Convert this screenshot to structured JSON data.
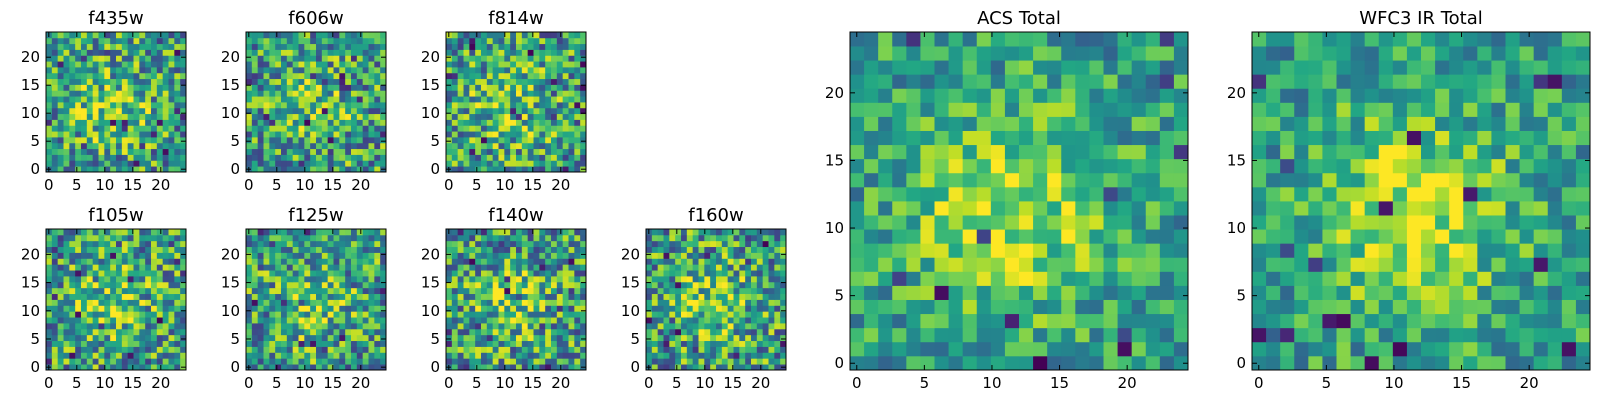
{
  "figure": {
    "colormap": [
      "#440154",
      "#31688e",
      "#35b779",
      "#8fd744",
      "#fde725"
    ],
    "palette_hint": "viridis-like heatmaps, 24x24 pixel grids per panel"
  },
  "chart_data": [
    {
      "type": "heatmap",
      "title": "f435w",
      "grid": [
        24,
        24
      ],
      "xticks": [
        0,
        5,
        10,
        15,
        20
      ],
      "yticks": [
        0,
        5,
        10,
        15,
        20
      ],
      "xlim": [
        -0.5,
        24.5
      ],
      "ylim": [
        -0.5,
        24.5
      ],
      "seed": 11
    },
    {
      "type": "heatmap",
      "title": "f606w",
      "grid": [
        24,
        24
      ],
      "xticks": [
        0,
        5,
        10,
        15,
        20
      ],
      "yticks": [
        0,
        5,
        10,
        15,
        20
      ],
      "xlim": [
        -0.5,
        24.5
      ],
      "ylim": [
        -0.5,
        24.5
      ],
      "seed": 23
    },
    {
      "type": "heatmap",
      "title": "f814w",
      "grid": [
        24,
        24
      ],
      "xticks": [
        0,
        5,
        10,
        15,
        20
      ],
      "yticks": [
        0,
        5,
        10,
        15,
        20
      ],
      "xlim": [
        -0.5,
        24.5
      ],
      "ylim": [
        -0.5,
        24.5
      ],
      "seed": 37
    },
    {
      "type": "heatmap",
      "title": "f105w",
      "grid": [
        24,
        24
      ],
      "xticks": [
        0,
        5,
        10,
        15,
        20
      ],
      "yticks": [
        0,
        5,
        10,
        15,
        20
      ],
      "xlim": [
        -0.5,
        24.5
      ],
      "ylim": [
        -0.5,
        24.5
      ],
      "seed": 41
    },
    {
      "type": "heatmap",
      "title": "f125w",
      "grid": [
        24,
        24
      ],
      "xticks": [
        0,
        5,
        10,
        15,
        20
      ],
      "yticks": [
        0,
        5,
        10,
        15,
        20
      ],
      "xlim": [
        -0.5,
        24.5
      ],
      "ylim": [
        -0.5,
        24.5
      ],
      "seed": 53
    },
    {
      "type": "heatmap",
      "title": "f140w",
      "grid": [
        24,
        24
      ],
      "xticks": [
        0,
        5,
        10,
        15,
        20
      ],
      "yticks": [
        0,
        5,
        10,
        15,
        20
      ],
      "xlim": [
        -0.5,
        24.5
      ],
      "ylim": [
        -0.5,
        24.5
      ],
      "seed": 67
    },
    {
      "type": "heatmap",
      "title": "f160w",
      "grid": [
        24,
        24
      ],
      "xticks": [
        0,
        5,
        10,
        15,
        20
      ],
      "yticks": [
        0,
        5,
        10,
        15,
        20
      ],
      "xlim": [
        -0.5,
        24.5
      ],
      "ylim": [
        -0.5,
        24.5
      ],
      "seed": 79
    },
    {
      "type": "heatmap",
      "title": "ACS Total",
      "grid": [
        24,
        24
      ],
      "xticks": [
        0,
        5,
        10,
        15,
        20
      ],
      "yticks": [
        0,
        5,
        10,
        15,
        20
      ],
      "xlim": [
        -0.5,
        24.5
      ],
      "ylim": [
        -0.5,
        24.5
      ],
      "seed": 97
    },
    {
      "type": "heatmap",
      "title": "WFC3 IR Total",
      "grid": [
        24,
        24
      ],
      "xticks": [
        0,
        5,
        10,
        15,
        20
      ],
      "yticks": [
        0,
        5,
        10,
        15,
        20
      ],
      "xlim": [
        -0.5,
        24.5
      ],
      "ylim": [
        -0.5,
        24.5
      ],
      "seed": 113
    }
  ]
}
